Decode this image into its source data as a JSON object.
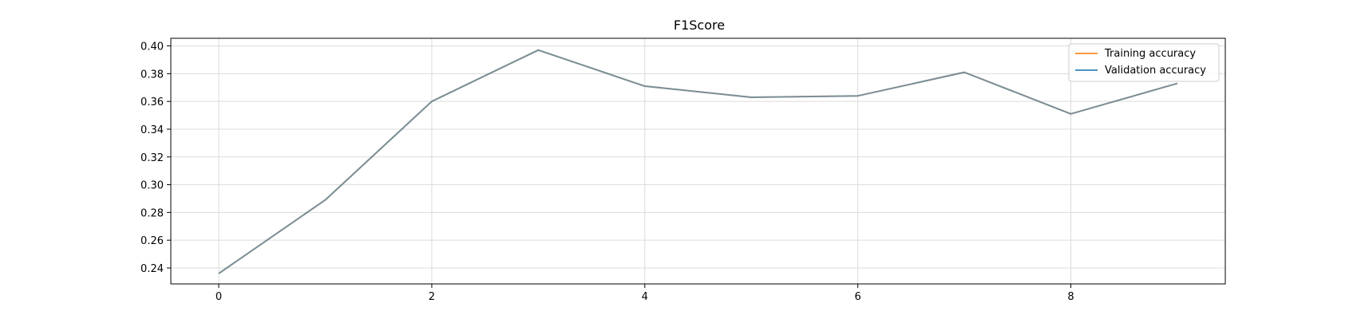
{
  "chart_data": {
    "type": "line",
    "title": "F1Score",
    "xlabel": "",
    "ylabel": "",
    "xlim": [
      -0.45,
      9.45
    ],
    "ylim": [
      0.2285,
      0.4055
    ],
    "x": [
      0,
      1,
      2,
      3,
      4,
      5,
      6,
      7,
      8,
      9
    ],
    "xticks": [
      0,
      2,
      4,
      6,
      8
    ],
    "yticks": [
      0.24,
      0.26,
      0.28,
      0.3,
      0.32,
      0.34,
      0.36,
      0.38,
      0.4
    ],
    "xtick_labels": [
      "0",
      "2",
      "4",
      "6",
      "8"
    ],
    "ytick_labels": [
      "0.24",
      "0.26",
      "0.28",
      "0.30",
      "0.32",
      "0.34",
      "0.36",
      "0.38",
      "0.40"
    ],
    "grid": true,
    "legend_position": "top-right",
    "series": [
      {
        "name": "Training accuracy",
        "color": "#ff7f0e",
        "values": [
          0.236,
          0.289,
          0.36,
          0.397,
          0.371,
          0.363,
          0.364,
          0.381,
          0.351,
          0.373
        ]
      },
      {
        "name": "Validation accuracy",
        "color": "#1f77b4",
        "values": [
          0.236,
          0.289,
          0.36,
          0.397,
          0.371,
          0.363,
          0.364,
          0.381,
          0.351,
          0.373
        ]
      }
    ]
  }
}
